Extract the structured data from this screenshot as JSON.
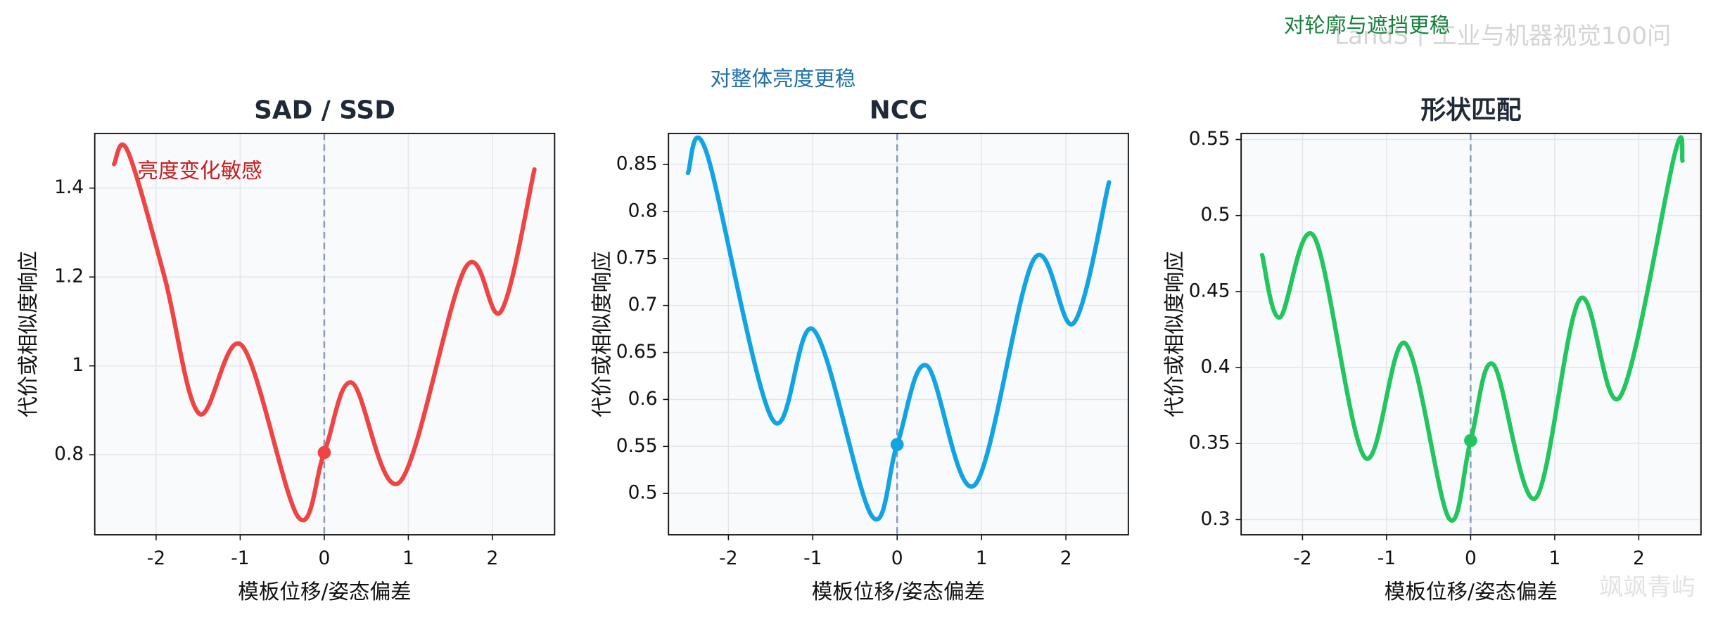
{
  "chart_data": [
    {
      "type": "line",
      "title": "SAD / SSD",
      "xlabel": "模板位移/姿态偏差",
      "ylabel": "代价或相似度响应",
      "annotation": "亮度变化敏感",
      "annotation_color": "#c81e1e",
      "color": "#ef4444",
      "x": [
        -2.5,
        -2.34,
        -1.9,
        -1.49,
        -0.98,
        -0.31,
        0,
        0.33,
        0.9,
        1.68,
        2.1,
        2.5
      ],
      "values": [
        1.454,
        1.484,
        1.2,
        0.893,
        1.046,
        0.66,
        0.805,
        0.962,
        0.739,
        1.221,
        1.122,
        1.442
      ],
      "highlight": {
        "x": 0,
        "y": 0.805
      },
      "xlim": [
        -2.73,
        2.74
      ],
      "ylim": [
        0.62,
        1.523
      ],
      "xticks": [
        -2,
        -1,
        0,
        1,
        2
      ],
      "yticks": [
        0.8,
        1.0,
        1.2,
        1.4
      ],
      "grid": true
    },
    {
      "type": "line",
      "title": "NCC",
      "xlabel": "模板位移/姿态偏差",
      "ylabel": "代价或相似度响应",
      "annotation": "对整体亮度更稳",
      "annotation_color": "#1f6fa8",
      "color": "#12a3e3",
      "x": [
        -2.48,
        -2.26,
        -1.48,
        -0.99,
        -0.3,
        0,
        0.35,
        0.92,
        1.62,
        2.09,
        2.51
      ],
      "values": [
        0.841,
        0.863,
        0.579,
        0.674,
        0.476,
        0.552,
        0.636,
        0.509,
        0.749,
        0.681,
        0.831
      ],
      "highlight": {
        "x": 0,
        "y": 0.552
      },
      "xlim": [
        -2.71,
        2.74
      ],
      "ylim": [
        0.456,
        0.883
      ],
      "xticks": [
        -2,
        -1,
        0,
        1,
        2
      ],
      "yticks": [
        0.5,
        0.55,
        0.6,
        0.65,
        0.7,
        0.75,
        0.8,
        0.85
      ],
      "grid": true
    },
    {
      "type": "line",
      "title": "形状匹配",
      "xlabel": "模板位移/姿态偏差",
      "ylabel": "代价或相似度响应",
      "annotation": "对轮廓与遮挡更稳",
      "annotation_color": "#15803d",
      "color": "#22c55e",
      "x": [
        -2.48,
        -2.27,
        -1.86,
        -1.26,
        -0.78,
        -0.26,
        0,
        0.27,
        0.77,
        1.3,
        1.78,
        2.43,
        2.52
      ],
      "values": [
        0.474,
        0.433,
        0.486,
        0.341,
        0.416,
        0.301,
        0.352,
        0.402,
        0.314,
        0.445,
        0.381,
        0.541,
        0.536
      ],
      "highlight": {
        "x": 0,
        "y": 0.352
      },
      "xlim": [
        -2.73,
        2.74
      ],
      "ylim": [
        0.29,
        0.554
      ],
      "xticks": [
        -2,
        -1,
        0,
        1,
        2
      ],
      "yticks": [
        0.3,
        0.35,
        0.4,
        0.45,
        0.5,
        0.55
      ],
      "grid": true
    }
  ],
  "watermarks": [
    "LandS丨工业与机器视觉100问",
    "飒飒青屿"
  ]
}
